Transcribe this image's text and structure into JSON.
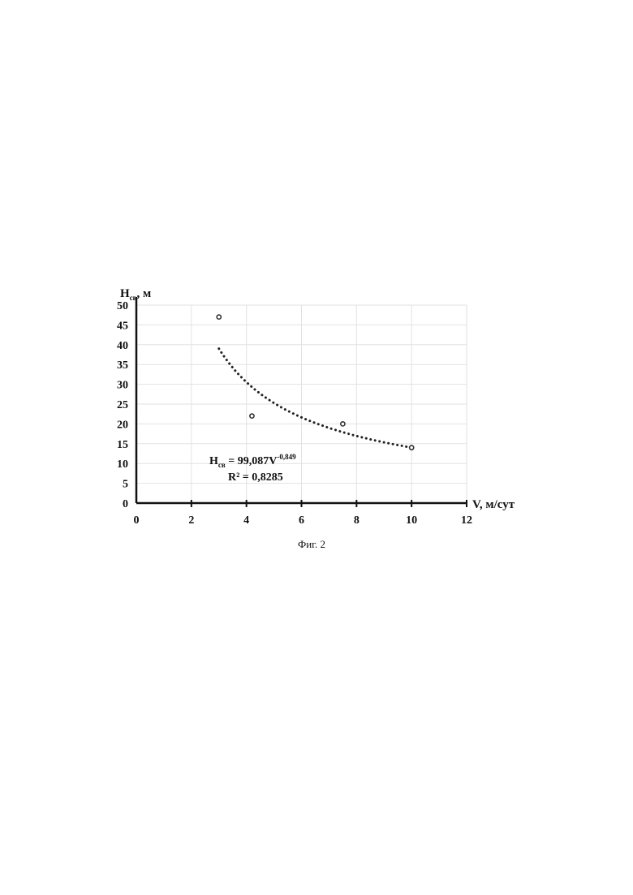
{
  "chart_data": {
    "type": "scatter",
    "ylabel": {
      "main": "H",
      "sub": "св",
      "suffix": ", м"
    },
    "xlabel": "V, м/сут",
    "xlim": [
      0,
      12
    ],
    "ylim": [
      0,
      50
    ],
    "x_ticks": [
      0,
      2,
      4,
      6,
      8,
      10,
      12
    ],
    "y_ticks": [
      0,
      5,
      10,
      15,
      20,
      25,
      30,
      35,
      40,
      45,
      50
    ],
    "grid": true,
    "points": [
      {
        "x": 3,
        "y": 47
      },
      {
        "x": 4.2,
        "y": 22
      },
      {
        "x": 7.5,
        "y": 20
      },
      {
        "x": 10,
        "y": 14
      }
    ],
    "trendline": {
      "type": "power",
      "coefficient": 99.087,
      "exponent": -0.849,
      "x_range": [
        3,
        10
      ],
      "equation": {
        "main": "H",
        "sub": "св",
        "middle": " = 99,087V",
        "sup": "-0,849"
      },
      "r_squared": "R² = 0,8285"
    },
    "caption": "Фиг. 2"
  },
  "colors": {
    "marker": "#333333",
    "trendline": "#222222",
    "axis": "#111111",
    "grid": "#e2e2e2"
  }
}
